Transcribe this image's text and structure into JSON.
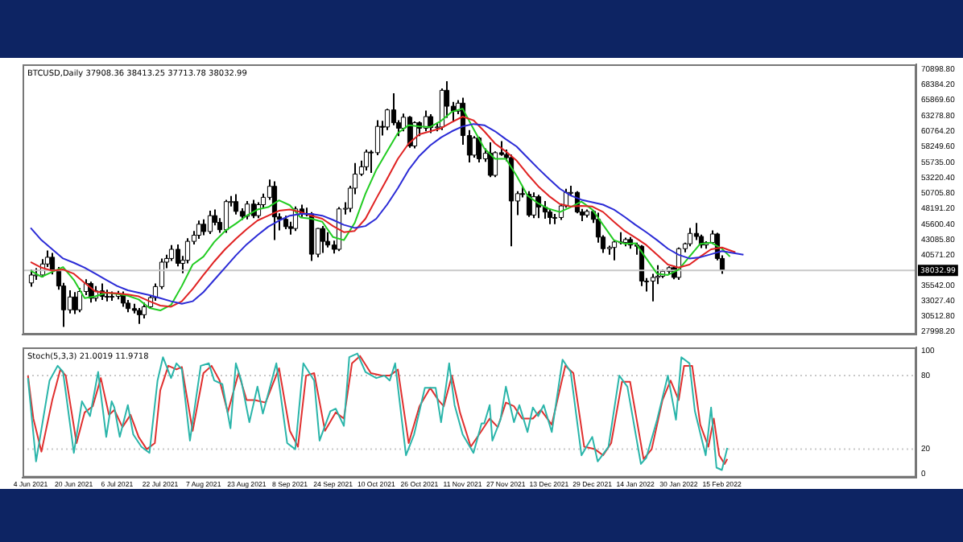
{
  "chart_data": [
    {
      "type": "candlestick",
      "title": "BTCUSD,Daily 37908.36 38413.25 37713.78 38032.99",
      "tick_labels": "y",
      "xlim": [
        "2021-06-01",
        "2022-04-28"
      ],
      "ylim": [
        27560,
        71750
      ],
      "yticks": [
        {
          "value": 27998.2,
          "label": "27998.20"
        },
        {
          "value": 30512.8,
          "label": "30512.80"
        },
        {
          "value": 33027.4,
          "label": "33027.40"
        },
        {
          "value": 35542,
          "label": "35542.00"
        },
        {
          "value": 40571.2,
          "label": "40571.20"
        },
        {
          "value": 43085.8,
          "label": "43085.80"
        },
        {
          "value": 45600.4,
          "label": "45600.40"
        },
        {
          "value": 48191.2,
          "label": "48191.20"
        },
        {
          "value": 50705.8,
          "label": "50705.80"
        },
        {
          "value": 53220.4,
          "label": "53220.40"
        },
        {
          "value": 55735,
          "label": "55735.00"
        },
        {
          "value": 58249.6,
          "label": "58249.60"
        },
        {
          "value": 60764.2,
          "label": "60764.20"
        },
        {
          "value": 63278.8,
          "label": "63278.80"
        },
        {
          "value": 65869.6,
          "label": "65869.60"
        },
        {
          "value": 68384.2,
          "label": "68384.20"
        },
        {
          "value": 70898.8,
          "label": "70898.80"
        }
      ],
      "ref_lines": [
        {
          "axis": "y",
          "value": 38032.99,
          "label": "38032.99",
          "color": "#c8c8c8"
        }
      ],
      "x": [
        "2021-06-04",
        "2021-06-06",
        "2021-06-08",
        "2021-06-10",
        "2021-06-12",
        "2021-06-14",
        "2021-06-16",
        "2021-06-18",
        "2021-06-20",
        "2021-06-22",
        "2021-06-24",
        "2021-06-26",
        "2021-06-28",
        "2021-06-30",
        "2021-07-02",
        "2021-07-04",
        "2021-07-06",
        "2021-07-08",
        "2021-07-10",
        "2021-07-12",
        "2021-07-14",
        "2021-07-16",
        "2021-07-18",
        "2021-07-20",
        "2021-07-22",
        "2021-07-24",
        "2021-07-26",
        "2021-07-28",
        "2021-07-30",
        "2021-08-01",
        "2021-08-03",
        "2021-08-05",
        "2021-08-07",
        "2021-08-09",
        "2021-08-11",
        "2021-08-13",
        "2021-08-15",
        "2021-08-17",
        "2021-08-19",
        "2021-08-21",
        "2021-08-23",
        "2021-08-25",
        "2021-08-27",
        "2021-08-29",
        "2021-08-31",
        "2021-09-02",
        "2021-09-04",
        "2021-09-06",
        "2021-09-08",
        "2021-09-10",
        "2021-09-12",
        "2021-09-14",
        "2021-09-16",
        "2021-09-18",
        "2021-09-20",
        "2021-09-22",
        "2021-09-24",
        "2021-09-26",
        "2021-09-28",
        "2021-09-30",
        "2021-10-02",
        "2021-10-04",
        "2021-10-06",
        "2021-10-08",
        "2021-10-10",
        "2021-10-12",
        "2021-10-14",
        "2021-10-16",
        "2021-10-18",
        "2021-10-20",
        "2021-10-22",
        "2021-10-24",
        "2021-10-26",
        "2021-10-28",
        "2021-10-30",
        "2021-11-01",
        "2021-11-03",
        "2021-11-05",
        "2021-11-07",
        "2021-11-09",
        "2021-11-11",
        "2021-11-13",
        "2021-11-15",
        "2021-11-17",
        "2021-11-19",
        "2021-11-21",
        "2021-11-23",
        "2021-11-25",
        "2021-11-27",
        "2021-11-29",
        "2021-12-01",
        "2021-12-03",
        "2021-12-05",
        "2021-12-07",
        "2021-12-09",
        "2021-12-11",
        "2021-12-13",
        "2021-12-15",
        "2021-12-17",
        "2021-12-19",
        "2021-12-21",
        "2021-12-23",
        "2021-12-25",
        "2021-12-27",
        "2021-12-29",
        "2021-12-31",
        "2022-01-02",
        "2022-01-04",
        "2022-01-06",
        "2022-01-08",
        "2022-01-10",
        "2022-01-12",
        "2022-01-14",
        "2022-01-16",
        "2022-01-18",
        "2022-01-20",
        "2022-01-22",
        "2022-01-24",
        "2022-01-26",
        "2022-01-28",
        "2022-01-30",
        "2022-02-01",
        "2022-02-03",
        "2022-02-05",
        "2022-02-07",
        "2022-02-09",
        "2022-02-11",
        "2022-02-13",
        "2022-02-15"
      ],
      "ohlc": [
        [
          36000,
          38200,
          35400,
          37300
        ],
        [
          37300,
          38400,
          36500,
          37300
        ],
        [
          37300,
          39900,
          36900,
          39100
        ],
        [
          39100,
          41300,
          38600,
          40200
        ],
        [
          40200,
          40900,
          37400,
          38000
        ],
        [
          38000,
          38600,
          34900,
          35500
        ],
        [
          35500,
          36000,
          28800,
          31600
        ],
        [
          31600,
          34800,
          31000,
          33700
        ],
        [
          33700,
          34500,
          30900,
          31600
        ],
        [
          31600,
          35200,
          31200,
          34600
        ],
        [
          34600,
          36600,
          34000,
          35900
        ],
        [
          35900,
          36200,
          32800,
          33500
        ],
        [
          33500,
          35500,
          33000,
          34700
        ],
        [
          34700,
          35900,
          33200,
          33800
        ],
        [
          33800,
          34900,
          33000,
          33800
        ],
        [
          33800,
          34600,
          33100,
          33800
        ],
        [
          33800,
          34700,
          33300,
          34200
        ],
        [
          34200,
          34600,
          32100,
          32700
        ],
        [
          32700,
          33200,
          31200,
          31800
        ],
        [
          31800,
          32600,
          31000,
          31500
        ],
        [
          31500,
          31900,
          29300,
          30800
        ],
        [
          30800,
          32800,
          30200,
          32100
        ],
        [
          32100,
          34000,
          31800,
          33600
        ],
        [
          33600,
          35900,
          33100,
          35400
        ],
        [
          35400,
          40000,
          35000,
          39400
        ],
        [
          39400,
          40600,
          38400,
          40000
        ],
        [
          40000,
          42200,
          39600,
          41500
        ],
        [
          41500,
          42300,
          38700,
          39200
        ],
        [
          39200,
          40400,
          37600,
          39700
        ],
        [
          39700,
          43300,
          39200,
          42800
        ],
        [
          42800,
          44500,
          42300,
          43800
        ],
        [
          43800,
          46200,
          43200,
          45600
        ],
        [
          45600,
          46400,
          43800,
          44400
        ],
        [
          44400,
          47800,
          44000,
          47000
        ],
        [
          47000,
          48000,
          45400,
          45900
        ],
        [
          45900,
          46600,
          44200,
          44700
        ],
        [
          44700,
          49600,
          44200,
          49300
        ],
        [
          49300,
          50200,
          48500,
          49300
        ],
        [
          49300,
          50500,
          47200,
          47700
        ],
        [
          47700,
          48200,
          46300,
          46900
        ],
        [
          46900,
          49400,
          46400,
          48900
        ],
        [
          48900,
          49600,
          46600,
          47000
        ],
        [
          47000,
          49200,
          46600,
          48800
        ],
        [
          48800,
          50600,
          48200,
          50000
        ],
        [
          50000,
          52900,
          49600,
          51800
        ],
        [
          51800,
          52600,
          43000,
          46800
        ],
        [
          46800,
          47400,
          44600,
          46400
        ],
        [
          46400,
          47000,
          44800,
          45200
        ],
        [
          45200,
          46000,
          43900,
          44900
        ],
        [
          44900,
          48500,
          44500,
          48100
        ],
        [
          48100,
          48800,
          46800,
          47300
        ],
        [
          47300,
          48300,
          46900,
          47300
        ],
        [
          47300,
          47600,
          39600,
          40700
        ],
        [
          40700,
          45000,
          40200,
          44900
        ],
        [
          44900,
          45300,
          40900,
          42800
        ],
        [
          42800,
          44300,
          41800,
          42200
        ],
        [
          42200,
          42900,
          40800,
          41500
        ],
        [
          41500,
          48400,
          41200,
          48100
        ],
        [
          48100,
          49200,
          47200,
          48200
        ],
        [
          48200,
          51900,
          47600,
          51500
        ],
        [
          51500,
          55600,
          50500,
          53800
        ],
        [
          53800,
          56000,
          53500,
          55000
        ],
        [
          55000,
          57800,
          54400,
          57400
        ],
        [
          57400,
          57700,
          54000,
          57300
        ],
        [
          57300,
          62600,
          56900,
          61600
        ],
        [
          61600,
          62500,
          60100,
          61500
        ],
        [
          61500,
          64500,
          61000,
          64300
        ],
        [
          64300,
          67000,
          61800,
          62200
        ],
        [
          62200,
          62600,
          60000,
          61300
        ],
        [
          61300,
          63700,
          60800,
          63100
        ],
        [
          63100,
          63300,
          58100,
          58400
        ],
        [
          58400,
          62400,
          58000,
          62200
        ],
        [
          62200,
          62400,
          60000,
          61300
        ],
        [
          61300,
          64200,
          60800,
          63200
        ],
        [
          63200,
          63600,
          60500,
          61400
        ],
        [
          61400,
          62200,
          60800,
          61500
        ],
        [
          61500,
          67800,
          61000,
          67500
        ],
        [
          67500,
          69000,
          63000,
          64900
        ],
        [
          64900,
          65600,
          62300,
          64100
        ],
        [
          64100,
          65900,
          63600,
          65400
        ],
        [
          65400,
          66300,
          58600,
          60100
        ],
        [
          60100,
          61000,
          55700,
          56900
        ],
        [
          56900,
          60000,
          56500,
          59700
        ],
        [
          59700,
          59900,
          55700,
          56300
        ],
        [
          56300,
          58000,
          55800,
          57200
        ],
        [
          57200,
          59000,
          53300,
          53600
        ],
        [
          53600,
          57500,
          53300,
          57300
        ],
        [
          57300,
          59200,
          56800,
          57000
        ],
        [
          57000,
          57800,
          55900,
          56500
        ],
        [
          56500,
          57000,
          42000,
          49400
        ],
        [
          49400,
          51000,
          47100,
          50600
        ],
        [
          50600,
          51900,
          50000,
          50500
        ],
        [
          50500,
          51000,
          46800,
          47100
        ],
        [
          47100,
          50800,
          46600,
          50100
        ],
        [
          50100,
          50400,
          46600,
          48400
        ],
        [
          48400,
          49400,
          46500,
          47600
        ],
        [
          47600,
          48000,
          45600,
          46700
        ],
        [
          46700,
          47300,
          45600,
          46700
        ],
        [
          46700,
          49000,
          46300,
          48600
        ],
        [
          48600,
          51400,
          48300,
          50800
        ],
        [
          50800,
          51900,
          50200,
          50800
        ],
        [
          50800,
          51000,
          47400,
          47600
        ],
        [
          47600,
          48100,
          46100,
          47100
        ],
        [
          47100,
          48000,
          46700,
          47700
        ],
        [
          47700,
          47900,
          45800,
          46400
        ],
        [
          46400,
          47500,
          42600,
          43500
        ],
        [
          43500,
          43800,
          40900,
          41600
        ],
        [
          41600,
          42100,
          40600,
          41800
        ],
        [
          41800,
          43000,
          39700,
          42700
        ],
        [
          42700,
          44300,
          42300,
          42600
        ],
        [
          42600,
          43400,
          42000,
          43100
        ],
        [
          43100,
          43500,
          41600,
          42200
        ],
        [
          42200,
          42600,
          40600,
          42000
        ],
        [
          42000,
          42200,
          35500,
          36300
        ],
        [
          36300,
          36800,
          34600,
          36300
        ],
        [
          36300,
          37500,
          33000,
          36900
        ],
        [
          36900,
          38900,
          35800,
          37100
        ],
        [
          37100,
          38200,
          36800,
          37900
        ],
        [
          37900,
          38700,
          37400,
          38500
        ],
        [
          38500,
          38800,
          36600,
          36900
        ],
        [
          36900,
          41800,
          36500,
          41600
        ],
        [
          41600,
          42600,
          41000,
          42400
        ],
        [
          42400,
          45000,
          42000,
          44100
        ],
        [
          44100,
          45800,
          43000,
          43600
        ],
        [
          43600,
          43900,
          41700,
          42200
        ],
        [
          42200,
          42800,
          41600,
          42600
        ],
        [
          42600,
          44600,
          42400,
          44000
        ],
        [
          44000,
          44200,
          39700,
          40000
        ],
        [
          40000,
          40500,
          37500,
          38032.99
        ]
      ],
      "series": [
        {
          "type": "line",
          "color": "#2b2bd6",
          "x": [
            "2021-06-04",
            "2021-06-08",
            "2021-06-12",
            "2021-06-16",
            "2021-06-20",
            "2021-06-24",
            "2021-06-28",
            "2021-07-02",
            "2021-07-06",
            "2021-07-10",
            "2021-07-14",
            "2021-07-18",
            "2021-07-22",
            "2021-07-26",
            "2021-07-30",
            "2021-08-03",
            "2021-08-07",
            "2021-08-11",
            "2021-08-15",
            "2021-08-19",
            "2021-08-23",
            "2021-08-27",
            "2021-08-31",
            "2021-09-04",
            "2021-09-08",
            "2021-09-12",
            "2021-09-16",
            "2021-09-20",
            "2021-09-24",
            "2021-09-28",
            "2021-10-02",
            "2021-10-06",
            "2021-10-10",
            "2021-10-14",
            "2021-10-18",
            "2021-10-22",
            "2021-10-26",
            "2021-10-30",
            "2021-11-03",
            "2021-11-07",
            "2021-11-11",
            "2021-11-15",
            "2021-11-19",
            "2021-11-23",
            "2021-11-27",
            "2021-12-01",
            "2021-12-05",
            "2021-12-09",
            "2021-12-13",
            "2021-12-17",
            "2021-12-21",
            "2021-12-25",
            "2021-12-29",
            "2022-01-02",
            "2022-01-06",
            "2022-01-10",
            "2022-01-14",
            "2022-01-18",
            "2022-01-22",
            "2022-01-26",
            "2022-01-30",
            "2022-02-03",
            "2022-02-07",
            "2022-02-11",
            "2022-02-15",
            "2022-02-23"
          ],
          "values": [
            45000,
            43000,
            41500,
            40000,
            39300,
            38500,
            37500,
            36500,
            35500,
            34800,
            34400,
            34000,
            33500,
            33000,
            32600,
            33000,
            34500,
            36500,
            38500,
            40500,
            42300,
            43800,
            45200,
            46200,
            47000,
            47300,
            47300,
            47000,
            46300,
            45500,
            45000,
            45300,
            46500,
            48800,
            51500,
            54500,
            56800,
            58500,
            59800,
            60800,
            61600,
            62000,
            61800,
            60800,
            59500,
            58300,
            56500,
            54700,
            53000,
            51400,
            50300,
            49600,
            49200,
            48800,
            48000,
            46800,
            45500,
            44300,
            43000,
            41600,
            40600,
            40000,
            40200,
            40700,
            41200,
            40600
          ]
        },
        {
          "type": "line",
          "color": "#e02222",
          "x": [
            "2021-06-04",
            "2021-06-08",
            "2021-06-12",
            "2021-06-16",
            "2021-06-20",
            "2021-06-24",
            "2021-06-28",
            "2021-07-02",
            "2021-07-06",
            "2021-07-10",
            "2021-07-14",
            "2021-07-18",
            "2021-07-22",
            "2021-07-26",
            "2021-07-30",
            "2021-08-03",
            "2021-08-07",
            "2021-08-11",
            "2021-08-15",
            "2021-08-19",
            "2021-08-23",
            "2021-08-27",
            "2021-08-31",
            "2021-09-04",
            "2021-09-08",
            "2021-09-12",
            "2021-09-16",
            "2021-09-20",
            "2021-09-24",
            "2021-09-28",
            "2021-10-02",
            "2021-10-06",
            "2021-10-10",
            "2021-10-14",
            "2021-10-18",
            "2021-10-22",
            "2021-10-26",
            "2021-10-30",
            "2021-11-03",
            "2021-11-07",
            "2021-11-11",
            "2021-11-15",
            "2021-11-19",
            "2021-11-23",
            "2021-11-27",
            "2021-12-01",
            "2021-12-05",
            "2021-12-09",
            "2021-12-13",
            "2021-12-17",
            "2021-12-21",
            "2021-12-25",
            "2021-12-29",
            "2022-01-02",
            "2022-01-06",
            "2022-01-10",
            "2022-01-14",
            "2022-01-18",
            "2022-01-22",
            "2022-01-26",
            "2022-01-30",
            "2022-02-03",
            "2022-02-07",
            "2022-02-11",
            "2022-02-15",
            "2022-02-20"
          ],
          "values": [
            39400,
            38500,
            38000,
            38200,
            37500,
            36000,
            34600,
            34400,
            34300,
            34100,
            33800,
            33000,
            32300,
            32100,
            33000,
            35000,
            37300,
            39500,
            41500,
            43200,
            44800,
            46200,
            47000,
            47800,
            48000,
            47600,
            47000,
            46500,
            45300,
            44300,
            44500,
            46500,
            49800,
            53000,
            56300,
            58800,
            60300,
            60800,
            61300,
            62300,
            63200,
            62600,
            60800,
            58800,
            57500,
            56000,
            53800,
            51800,
            50200,
            48900,
            48500,
            48600,
            48500,
            47600,
            46000,
            44500,
            43400,
            42200,
            40600,
            39000,
            38500,
            39000,
            40300,
            41500,
            41800,
            41000
          ]
        },
        {
          "type": "line",
          "color": "#22cc22",
          "x": [
            "2021-06-04",
            "2021-06-08",
            "2021-06-12",
            "2021-06-16",
            "2021-06-20",
            "2021-06-24",
            "2021-06-28",
            "2021-07-02",
            "2021-07-06",
            "2021-07-10",
            "2021-07-14",
            "2021-07-18",
            "2021-07-22",
            "2021-07-26",
            "2021-07-30",
            "2021-08-03",
            "2021-08-07",
            "2021-08-11",
            "2021-08-15",
            "2021-08-19",
            "2021-08-23",
            "2021-08-27",
            "2021-08-31",
            "2021-09-04",
            "2021-09-08",
            "2021-09-12",
            "2021-09-16",
            "2021-09-20",
            "2021-09-24",
            "2021-09-28",
            "2021-10-02",
            "2021-10-06",
            "2021-10-10",
            "2021-10-14",
            "2021-10-18",
            "2021-10-22",
            "2021-10-26",
            "2021-10-30",
            "2021-11-03",
            "2021-11-07",
            "2021-11-11",
            "2021-11-15",
            "2021-11-19",
            "2021-11-23",
            "2021-11-27",
            "2021-12-01",
            "2021-12-05",
            "2021-12-09",
            "2021-12-13",
            "2021-12-17",
            "2021-12-21",
            "2021-12-25",
            "2021-12-29",
            "2022-01-02",
            "2022-01-06",
            "2022-01-10",
            "2022-01-14",
            "2022-01-18",
            "2022-01-22",
            "2022-01-26",
            "2022-01-30",
            "2022-02-03",
            "2022-02-07",
            "2022-02-11",
            "2022-02-15",
            "2022-02-18"
          ],
          "values": [
            38000,
            37000,
            37800,
            38600,
            36500,
            33500,
            33800,
            34400,
            34200,
            33900,
            33300,
            31900,
            31500,
            32400,
            35500,
            39000,
            40300,
            42700,
            44500,
            45700,
            47000,
            48000,
            48400,
            49500,
            48700,
            46700,
            46500,
            46000,
            43500,
            43000,
            45800,
            50600,
            54500,
            57500,
            60500,
            61800,
            61600,
            61500,
            62500,
            64000,
            64500,
            61200,
            58000,
            56300,
            56300,
            53500,
            50300,
            49000,
            48100,
            47600,
            48400,
            49300,
            48000,
            45500,
            43000,
            42400,
            42500,
            40000,
            37500,
            37300,
            38200,
            40300,
            42400,
            42600,
            41600,
            40300
          ]
        }
      ]
    },
    {
      "type": "line",
      "title": "Stoch(5,3,3) 21.0019 11.9718",
      "xlim": [
        "2021-06-01",
        "2022-04-28"
      ],
      "ylim": [
        -3,
        103
      ],
      "yticks": [
        0,
        20,
        80,
        100
      ],
      "xticks": [
        {
          "value": "2021-06-04",
          "label": "4 Jun 2021"
        },
        {
          "value": "2021-06-20",
          "label": "20 Jun 2021"
        },
        {
          "value": "2021-07-06",
          "label": "6 Jul 2021"
        },
        {
          "value": "2021-07-22",
          "label": "22 Jul 2021"
        },
        {
          "value": "2021-08-07",
          "label": "7 Aug 2021"
        },
        {
          "value": "2021-08-23",
          "label": "23 Aug 2021"
        },
        {
          "value": "2021-09-08",
          "label": "8 Sep 2021"
        },
        {
          "value": "2021-09-24",
          "label": "24 Sep 2021"
        },
        {
          "value": "2021-10-10",
          "label": "10 Oct 2021"
        },
        {
          "value": "2021-10-26",
          "label": "26 Oct 2021"
        },
        {
          "value": "2021-11-11",
          "label": "11 Nov 2021"
        },
        {
          "value": "2021-11-27",
          "label": "27 Nov 2021"
        },
        {
          "value": "2021-12-13",
          "label": "13 Dec 2021"
        },
        {
          "value": "2021-12-29",
          "label": "29 Dec 2021"
        },
        {
          "value": "2022-01-14",
          "label": "14 Jan 2022"
        },
        {
          "value": "2022-01-30",
          "label": "30 Jan 2022"
        },
        {
          "value": "2022-02-15",
          "label": "15 Feb 2022"
        }
      ],
      "ref_lines": [
        {
          "axis": "y",
          "value": 20,
          "color": "#c8c8c8",
          "line_style": "dotted"
        },
        {
          "axis": "y",
          "value": 80,
          "color": "#c8c8c8",
          "line_style": "dotted"
        }
      ],
      "series": [
        {
          "color": "#2ab5aa",
          "x": [
            "2021-06-03",
            "2021-06-06",
            "2021-06-11",
            "2021-06-14",
            "2021-06-16",
            "2021-06-20",
            "2021-06-23",
            "2021-06-26",
            "2021-06-29",
            "2021-07-02",
            "2021-07-04",
            "2021-07-05",
            "2021-07-07",
            "2021-07-10",
            "2021-07-12",
            "2021-07-15",
            "2021-07-18",
            "2021-07-21",
            "2021-07-23",
            "2021-07-26",
            "2021-07-28",
            "2021-07-30",
            "2021-08-02",
            "2021-08-06",
            "2021-08-09",
            "2021-08-11",
            "2021-08-14",
            "2021-08-17",
            "2021-08-19",
            "2021-08-21",
            "2021-08-24",
            "2021-08-27",
            "2021-08-29",
            "2021-09-03",
            "2021-09-07",
            "2021-09-10",
            "2021-09-13",
            "2021-09-17",
            "2021-09-19",
            "2021-09-23",
            "2021-09-25",
            "2021-09-28",
            "2021-09-30",
            "2021-10-03",
            "2021-10-06",
            "2021-10-10",
            "2021-10-13",
            "2021-10-15",
            "2021-10-17",
            "2021-10-21",
            "2021-10-24",
            "2021-10-28",
            "2021-11-01",
            "2021-11-03",
            "2021-11-06",
            "2021-11-08",
            "2021-11-11",
            "2021-11-15",
            "2021-11-18",
            "2021-11-19",
            "2021-11-21",
            "2021-11-22",
            "2021-11-25",
            "2021-11-27",
            "2021-11-30",
            "2021-12-02",
            "2021-12-05",
            "2021-12-07",
            "2021-12-09",
            "2021-12-11",
            "2021-12-14",
            "2021-12-18",
            "2021-12-21",
            "2021-12-25",
            "2021-12-29",
            "2021-12-31",
            "2022-01-04",
            "2022-01-08",
            "2022-01-11",
            "2022-01-16",
            "2022-01-18",
            "2022-01-22",
            "2022-01-26",
            "2022-01-29",
            "2022-01-31",
            "2022-02-03",
            "2022-02-05",
            "2022-02-09",
            "2022-02-11",
            "2022-02-13",
            "2022-02-15",
            "2022-02-17"
          ],
          "values": [
            78,
            10,
            76,
            88,
            83,
            17,
            59,
            47,
            83,
            30,
            59,
            54,
            30,
            56,
            32,
            22,
            17,
            76,
            95,
            78,
            90,
            85,
            27,
            88,
            90,
            76,
            73,
            37,
            90,
            76,
            42,
            71,
            49,
            90,
            25,
            20,
            90,
            76,
            27,
            51,
            53,
            39,
            95,
            98,
            83,
            78,
            80,
            76,
            90,
            15,
            32,
            70,
            70,
            42,
            90,
            56,
            32,
            17,
            41,
            41,
            56,
            27,
            44,
            71,
            42,
            56,
            34,
            54,
            47,
            56,
            34,
            93,
            83,
            15,
            30,
            10,
            22,
            80,
            71,
            8,
            13,
            44,
            80,
            44,
            95,
            90,
            51,
            15,
            54,
            5,
            3,
            21
          ]
        },
        {
          "color": "#e0302f",
          "x": [
            "2021-06-03",
            "2021-06-05",
            "2021-06-08",
            "2021-06-12",
            "2021-06-15",
            "2021-06-17",
            "2021-06-21",
            "2021-06-24",
            "2021-06-27",
            "2021-06-30",
            "2021-07-03",
            "2021-07-05",
            "2021-07-08",
            "2021-07-11",
            "2021-07-14",
            "2021-07-17",
            "2021-07-20",
            "2021-07-22",
            "2021-07-25",
            "2021-07-28",
            "2021-07-30",
            "2021-08-03",
            "2021-08-07",
            "2021-08-10",
            "2021-08-13",
            "2021-08-16",
            "2021-08-20",
            "2021-08-23",
            "2021-08-26",
            "2021-08-30",
            "2021-09-04",
            "2021-09-08",
            "2021-09-11",
            "2021-09-14",
            "2021-09-17",
            "2021-09-21",
            "2021-09-25",
            "2021-09-28",
            "2021-10-01",
            "2021-10-04",
            "2021-10-08",
            "2021-10-12",
            "2021-10-15",
            "2021-10-18",
            "2021-10-22",
            "2021-10-26",
            "2021-10-30",
            "2021-11-02",
            "2021-11-04",
            "2021-11-07",
            "2021-11-10",
            "2021-11-14",
            "2021-11-18",
            "2021-11-21",
            "2021-11-24",
            "2021-11-27",
            "2021-11-30",
            "2021-12-03",
            "2021-12-07",
            "2021-12-10",
            "2021-12-14",
            "2021-12-19",
            "2021-12-22",
            "2021-12-26",
            "2021-12-30",
            "2022-01-02",
            "2022-01-05",
            "2022-01-09",
            "2022-01-12",
            "2022-01-17",
            "2022-01-20",
            "2022-01-24",
            "2022-01-27",
            "2022-01-30",
            "2022-02-01",
            "2022-02-04",
            "2022-02-07",
            "2022-02-10",
            "2022-02-12",
            "2022-02-14",
            "2022-02-16",
            "2022-02-17"
          ],
          "values": [
            80,
            45,
            18,
            60,
            85,
            80,
            25,
            50,
            55,
            78,
            48,
            52,
            38,
            48,
            30,
            20,
            25,
            68,
            88,
            85,
            87,
            35,
            82,
            88,
            76,
            50,
            82,
            60,
            60,
            58,
            86,
            35,
            22,
            80,
            82,
            35,
            50,
            45,
            90,
            96,
            82,
            80,
            80,
            85,
            25,
            55,
            70,
            60,
            55,
            80,
            50,
            22,
            35,
            45,
            38,
            58,
            55,
            45,
            45,
            52,
            40,
            88,
            82,
            22,
            20,
            15,
            25,
            75,
            75,
            12,
            20,
            60,
            76,
            60,
            88,
            88,
            40,
            22,
            45,
            15,
            8,
            12
          ]
        }
      ]
    }
  ]
}
